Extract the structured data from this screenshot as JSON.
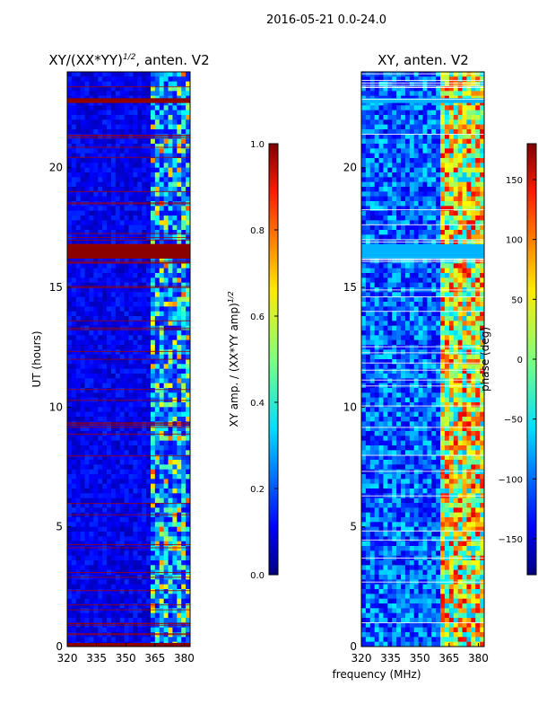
{
  "suptitle": "2016-05-21 0.0-24.0",
  "xlabel_shared": "frequency (MHz)",
  "chart_data": [
    {
      "type": "heatmap",
      "title_main": "XY/(XX*YY)",
      "title_sup": "1/2",
      "title_tail": ", anten. V2",
      "xlim": [
        320,
        383
      ],
      "ylim": [
        0,
        24
      ],
      "xticks": [
        320,
        335,
        350,
        365,
        380
      ],
      "yticks": [
        0,
        5,
        10,
        15,
        20
      ],
      "ylabel": "UT (hours)",
      "flag_bands": [
        [
          16.2,
          16.8
        ],
        [
          22.7,
          22.9
        ],
        [
          0.0,
          0.15
        ]
      ],
      "active_channels_mhz": [
        [
          362,
          383
        ]
      ],
      "colorbar": {
        "label_main": "XY amp. / (XX*YY amp)",
        "label_sup": "1/2",
        "range": [
          0.0,
          1.0
        ],
        "ticks": [
          "0.0",
          "0.2",
          "0.4",
          "0.6",
          "0.8",
          "1.0"
        ],
        "colormap": "jet"
      }
    },
    {
      "type": "heatmap",
      "title": "XY, anten. V2",
      "xlim": [
        320,
        383
      ],
      "ylim": [
        0,
        24
      ],
      "xticks": [
        320,
        335,
        350,
        365,
        380
      ],
      "yticks": [
        0,
        5,
        10,
        15,
        20
      ],
      "flag_bands": [
        [
          16.2,
          16.8
        ],
        [
          22.7,
          22.9
        ]
      ],
      "active_channels_mhz": [
        [
          360,
          383
        ]
      ],
      "colorbar": {
        "label": "phase (deg)",
        "range": [
          -180,
          180
        ],
        "ticks": [
          "−150",
          "−100",
          "−50",
          "0",
          "50",
          "100",
          "150"
        ],
        "colormap": "jet"
      }
    }
  ]
}
